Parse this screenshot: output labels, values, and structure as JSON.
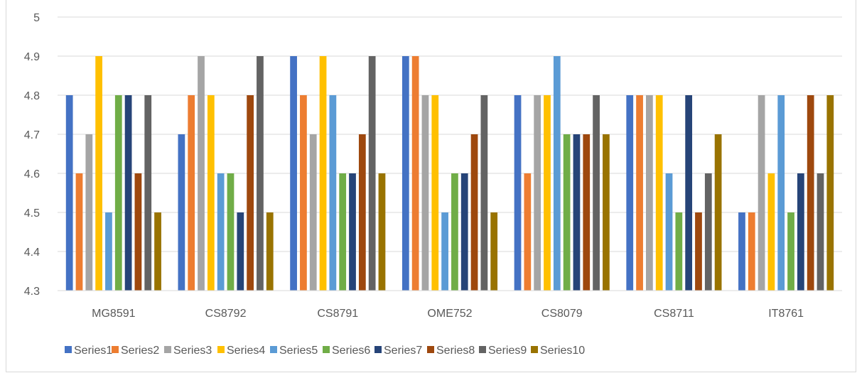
{
  "chart_data": {
    "type": "bar",
    "title": "",
    "xlabel": "",
    "ylabel": "",
    "ylim": [
      4.3,
      5
    ],
    "yticks": [
      "4.3",
      "4.4",
      "4.5",
      "4.6",
      "4.7",
      "4.8",
      "4.9",
      "5"
    ],
    "grid": true,
    "legend_position": "bottom",
    "categories": [
      "MG8591",
      "CS8792",
      "CS8791",
      "OME752",
      "CS8079",
      "CS8711",
      "IT8761"
    ],
    "series": [
      {
        "name": "Series1",
        "color": "#4472C4",
        "values": [
          4.8,
          4.7,
          4.9,
          4.9,
          4.8,
          4.8,
          4.5
        ]
      },
      {
        "name": "Series2",
        "color": "#ED7D31",
        "values": [
          4.6,
          4.8,
          4.8,
          4.9,
          4.6,
          4.8,
          4.5
        ]
      },
      {
        "name": "Series3",
        "color": "#A5A5A5",
        "values": [
          4.7,
          4.9,
          4.7,
          4.8,
          4.8,
          4.8,
          4.8
        ]
      },
      {
        "name": "Series4",
        "color": "#FFC000",
        "values": [
          4.9,
          4.8,
          4.9,
          4.8,
          4.8,
          4.8,
          4.6
        ]
      },
      {
        "name": "Series5",
        "color": "#5B9BD5",
        "values": [
          4.5,
          4.6,
          4.8,
          4.5,
          4.9,
          4.6,
          4.8
        ]
      },
      {
        "name": "Series6",
        "color": "#70AD47",
        "values": [
          4.8,
          4.6,
          4.6,
          4.6,
          4.7,
          4.5,
          4.5
        ]
      },
      {
        "name": "Series7",
        "color": "#264478",
        "values": [
          4.8,
          4.5,
          4.6,
          4.6,
          4.7,
          4.8,
          4.6
        ]
      },
      {
        "name": "Series8",
        "color": "#9E480E",
        "values": [
          4.6,
          4.8,
          4.7,
          4.7,
          4.7,
          4.5,
          4.8
        ]
      },
      {
        "name": "Series9",
        "color": "#636363",
        "values": [
          4.8,
          4.9,
          4.9,
          4.8,
          4.8,
          4.6,
          4.6
        ]
      },
      {
        "name": "Series10",
        "color": "#997300",
        "values": [
          4.5,
          4.5,
          4.6,
          4.5,
          4.7,
          4.7,
          4.8
        ]
      }
    ]
  }
}
